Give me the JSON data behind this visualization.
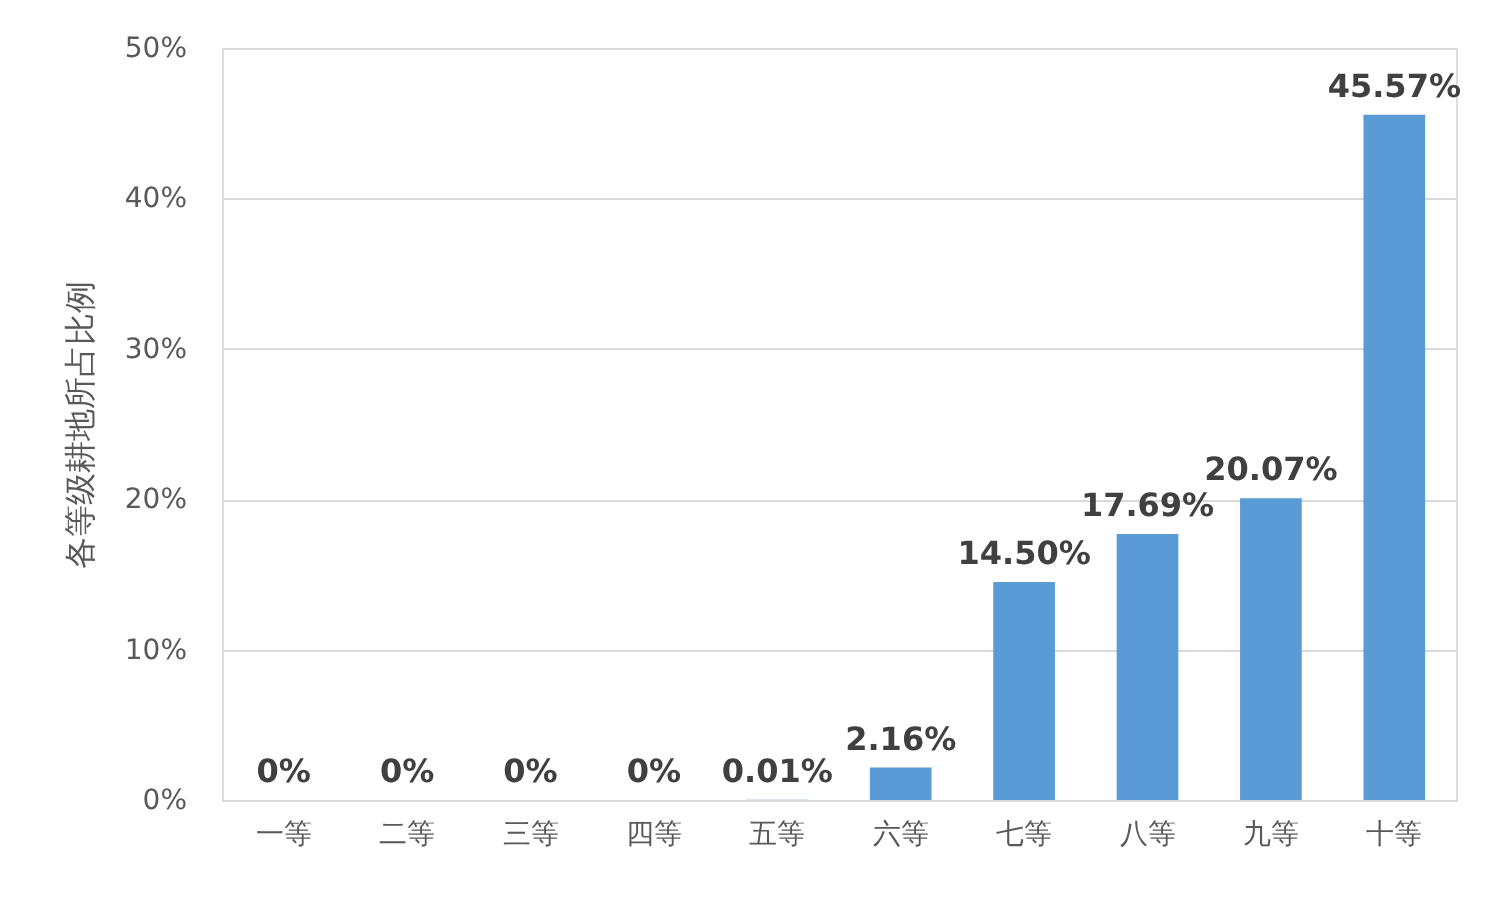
{
  "chart_data": {
    "type": "bar",
    "ylabel": "各等级耕地所占比例",
    "categories": [
      "一等",
      "二等",
      "三等",
      "四等",
      "五等",
      "六等",
      "七等",
      "八等",
      "九等",
      "十等"
    ],
    "values": [
      0,
      0,
      0,
      0,
      0.01,
      2.16,
      14.5,
      17.69,
      20.07,
      45.57
    ],
    "value_labels": [
      "0%",
      "0%",
      "0%",
      "0%",
      "0.01%",
      "2.16%",
      "14.50%",
      "17.69%",
      "20.07%",
      "45.57%"
    ],
    "color": "#5b9bd5",
    "ylim": [
      0,
      50
    ],
    "yticks": [
      {
        "value": 0,
        "label": "0%"
      },
      {
        "value": 10,
        "label": "10%"
      },
      {
        "value": 20,
        "label": "20%"
      },
      {
        "value": 30,
        "label": "30%"
      },
      {
        "value": 40,
        "label": "40%"
      },
      {
        "value": 50,
        "label": "50%"
      }
    ],
    "grid": "y"
  }
}
